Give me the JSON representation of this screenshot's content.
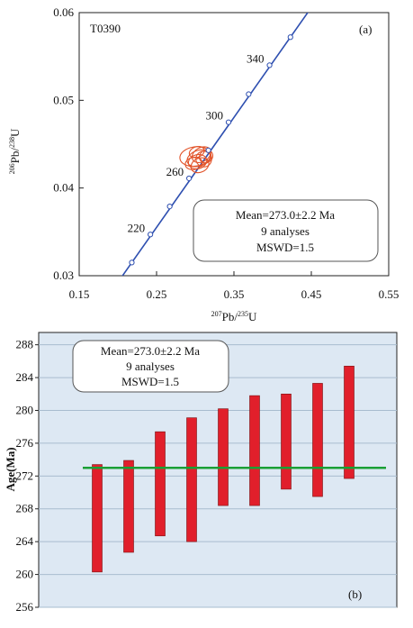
{
  "chart_data": [
    {
      "type": "scatter",
      "panel_label": "(a)",
      "sample": "T0390",
      "x_axis": {
        "ticks": [
          "0.15",
          "0.25",
          "0.35",
          "0.45",
          "0.55"
        ],
        "xlim": [
          0.15,
          0.55
        ]
      },
      "y_axis": {
        "ticks": [
          "0.03",
          "0.04",
          "0.05",
          "0.06"
        ],
        "ylim": [
          0.03,
          0.06
        ]
      },
      "xlabel": {
        "sup1": "207",
        "main1": "Pb/",
        "sup2": "235",
        "main2": "U"
      },
      "ylabel": {
        "sup1": "206",
        "main1": "Pb/",
        "sup2": "238",
        "main2": "U"
      },
      "concordia_line_color": "#2e4fb0",
      "ellipse_color": "#e2542a",
      "concordia_points": [
        {
          "x": 0.218,
          "y": 0.0315
        },
        {
          "x": 0.242,
          "y": 0.0347
        },
        {
          "x": 0.267,
          "y": 0.0379
        },
        {
          "x": 0.292,
          "y": 0.0411
        },
        {
          "x": 0.317,
          "y": 0.0443
        },
        {
          "x": 0.343,
          "y": 0.0475
        },
        {
          "x": 0.369,
          "y": 0.0507
        },
        {
          "x": 0.396,
          "y": 0.054
        },
        {
          "x": 0.423,
          "y": 0.0572
        }
      ],
      "age_labels": [
        {
          "label": "220",
          "x": 0.242,
          "y": 0.0347
        },
        {
          "label": "260",
          "x": 0.292,
          "y": 0.0411
        },
        {
          "label": "300",
          "x": 0.343,
          "y": 0.0475
        },
        {
          "label": "340",
          "x": 0.396,
          "y": 0.054
        }
      ],
      "ellipses": [
        {
          "cx": 0.3,
          "cy": 0.0436,
          "rx": 0.02,
          "ry": 0.0011,
          "angle": -8
        },
        {
          "cx": 0.305,
          "cy": 0.0434,
          "rx": 0.016,
          "ry": 0.0009,
          "angle": -18
        },
        {
          "cx": 0.308,
          "cy": 0.0438,
          "rx": 0.013,
          "ry": 0.0008,
          "angle": -30
        },
        {
          "cx": 0.303,
          "cy": 0.043,
          "rx": 0.012,
          "ry": 0.0008,
          "angle": -15
        },
        {
          "cx": 0.311,
          "cy": 0.0433,
          "rx": 0.01,
          "ry": 0.0009,
          "angle": -40
        },
        {
          "cx": 0.298,
          "cy": 0.0428,
          "rx": 0.011,
          "ry": 0.0007,
          "angle": -12
        },
        {
          "cx": 0.306,
          "cy": 0.0426,
          "rx": 0.012,
          "ry": 0.0008,
          "angle": -25
        },
        {
          "cx": 0.314,
          "cy": 0.0436,
          "rx": 0.009,
          "ry": 0.0007,
          "angle": -35
        },
        {
          "cx": 0.302,
          "cy": 0.0441,
          "rx": 0.01,
          "ry": 0.0006,
          "angle": -20
        }
      ],
      "stats": {
        "mean": "Mean=273.0±2.2 Ma",
        "analyses": "9 analyses",
        "mswd": "MSWD=1.5"
      }
    },
    {
      "type": "bar",
      "panel_label": "(b)",
      "ylabel": "Age(Ma)",
      "y_axis": {
        "ticks": [
          "256",
          "260",
          "264",
          "268",
          "272",
          "276",
          "280",
          "284",
          "288"
        ],
        "ylim": [
          256,
          289.5
        ]
      },
      "grid": true,
      "background_color": "#dde8f3",
      "bar_color": "#e11f2b",
      "mean_line": {
        "value": 273.0,
        "color": "#1aa035"
      },
      "ranges": [
        {
          "low": 260.3,
          "high": 273.4
        },
        {
          "low": 262.7,
          "high": 273.9
        },
        {
          "low": 264.7,
          "high": 277.4
        },
        {
          "low": 264.0,
          "high": 279.1
        },
        {
          "low": 268.4,
          "high": 280.2
        },
        {
          "low": 268.4,
          "high": 281.8
        },
        {
          "low": 270.4,
          "high": 282.0
        },
        {
          "low": 269.5,
          "high": 283.3
        },
        {
          "low": 271.7,
          "high": 285.4
        }
      ],
      "stats": {
        "mean": "Mean=273.0±2.2 Ma",
        "analyses": "9 analyses",
        "mswd": "MSWD=1.5"
      }
    }
  ]
}
